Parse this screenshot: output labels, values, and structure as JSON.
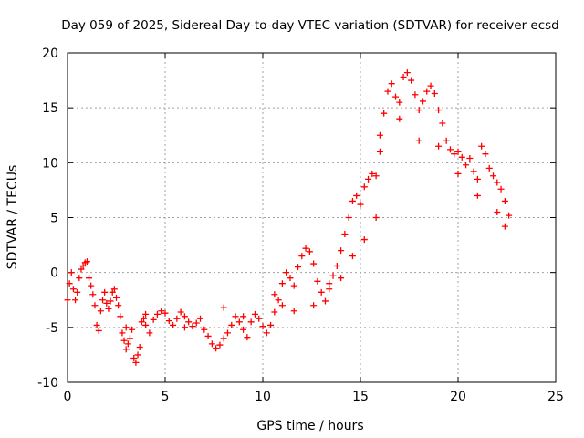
{
  "chart_data": {
    "type": "scatter",
    "title": "Day 059 of 2025, Sidereal Day-to-day VTEC variation (SDTVAR) for receiver ecsd",
    "xlabel": "GPS time / hours",
    "ylabel": "SDTVAR / TECUs",
    "xlim": [
      0,
      25
    ],
    "ylim": [
      -10,
      20
    ],
    "xticks": [
      0,
      5,
      10,
      15,
      20,
      25
    ],
    "yticks": [
      -10,
      -5,
      0,
      5,
      10,
      15,
      20
    ],
    "xtick_labels": [
      "0",
      "5",
      "10",
      "15",
      "20",
      "25"
    ],
    "ytick_labels": [
      "-10",
      "-5",
      "0",
      "5",
      "10",
      "15",
      "20"
    ],
    "grid": true,
    "marker": "+",
    "color": "#ff0000",
    "series": [
      {
        "name": "SDTVAR",
        "points": [
          [
            0.0,
            -2.5
          ],
          [
            0.1,
            -1.0
          ],
          [
            0.2,
            0.0
          ],
          [
            0.3,
            -1.5
          ],
          [
            0.4,
            -2.5
          ],
          [
            0.5,
            -1.8
          ],
          [
            0.6,
            -0.5
          ],
          [
            0.7,
            0.3
          ],
          [
            0.8,
            0.6
          ],
          [
            0.9,
            0.9
          ],
          [
            1.0,
            1.0
          ],
          [
            1.1,
            -0.5
          ],
          [
            1.2,
            -1.2
          ],
          [
            1.3,
            -2.0
          ],
          [
            1.4,
            -3.0
          ],
          [
            1.5,
            -4.8
          ],
          [
            1.6,
            -5.3
          ],
          [
            1.7,
            -3.5
          ],
          [
            1.8,
            -2.5
          ],
          [
            1.9,
            -1.8
          ],
          [
            2.0,
            -2.8
          ],
          [
            2.1,
            -3.3
          ],
          [
            2.2,
            -2.6
          ],
          [
            2.3,
            -1.8
          ],
          [
            2.4,
            -1.5
          ],
          [
            2.5,
            -2.3
          ],
          [
            2.6,
            -3.0
          ],
          [
            2.7,
            -4.0
          ],
          [
            2.8,
            -5.5
          ],
          [
            2.9,
            -6.2
          ],
          [
            3.0,
            -7.0
          ],
          [
            3.1,
            -6.5
          ],
          [
            3.2,
            -6.0
          ],
          [
            3.3,
            -5.2
          ],
          [
            3.4,
            -7.8
          ],
          [
            3.5,
            -8.2
          ],
          [
            3.6,
            -7.5
          ],
          [
            3.7,
            -6.8
          ],
          [
            3.8,
            -4.5
          ],
          [
            3.9,
            -4.2
          ],
          [
            4.0,
            -4.8
          ],
          [
            4.2,
            -5.5
          ],
          [
            4.4,
            -4.3
          ],
          [
            4.6,
            -3.8
          ],
          [
            4.8,
            -3.5
          ],
          [
            5.0,
            -3.7
          ],
          [
            5.2,
            -4.4
          ],
          [
            5.4,
            -4.8
          ],
          [
            5.6,
            -4.2
          ],
          [
            5.8,
            -3.6
          ],
          [
            6.0,
            -4.0
          ],
          [
            6.2,
            -4.5
          ],
          [
            6.4,
            -4.9
          ],
          [
            6.6,
            -4.6
          ],
          [
            6.8,
            -4.2
          ],
          [
            7.0,
            -5.2
          ],
          [
            7.2,
            -5.8
          ],
          [
            7.4,
            -6.5
          ],
          [
            7.6,
            -6.9
          ],
          [
            7.8,
            -6.6
          ],
          [
            8.0,
            -6.0
          ],
          [
            8.2,
            -5.5
          ],
          [
            8.4,
            -4.8
          ],
          [
            8.6,
            -4.0
          ],
          [
            8.8,
            -4.5
          ],
          [
            9.0,
            -5.2
          ],
          [
            9.2,
            -5.9
          ],
          [
            9.4,
            -4.5
          ],
          [
            9.6,
            -3.8
          ],
          [
            9.8,
            -4.2
          ],
          [
            10.0,
            -4.9
          ],
          [
            10.2,
            -5.5
          ],
          [
            10.4,
            -4.8
          ],
          [
            10.6,
            -3.6
          ],
          [
            10.8,
            -2.5
          ],
          [
            11.0,
            -1.0
          ],
          [
            11.2,
            0.0
          ],
          [
            11.4,
            -0.5
          ],
          [
            11.6,
            -1.2
          ],
          [
            11.8,
            0.5
          ],
          [
            12.0,
            1.5
          ],
          [
            12.2,
            2.2
          ],
          [
            12.4,
            1.9
          ],
          [
            12.6,
            0.8
          ],
          [
            12.8,
            -0.8
          ],
          [
            13.0,
            -1.8
          ],
          [
            13.2,
            -2.6
          ],
          [
            13.4,
            -1.5
          ],
          [
            13.6,
            -0.3
          ],
          [
            13.8,
            0.6
          ],
          [
            14.0,
            2.0
          ],
          [
            14.2,
            3.5
          ],
          [
            14.4,
            5.0
          ],
          [
            14.6,
            6.5
          ],
          [
            14.8,
            7.0
          ],
          [
            15.0,
            6.2
          ],
          [
            15.2,
            7.8
          ],
          [
            15.4,
            8.5
          ],
          [
            15.6,
            9.0
          ],
          [
            15.8,
            8.8
          ],
          [
            16.0,
            11.0
          ],
          [
            16.2,
            14.5
          ],
          [
            16.4,
            16.5
          ],
          [
            16.6,
            17.2
          ],
          [
            16.8,
            16.0
          ],
          [
            17.0,
            15.5
          ],
          [
            17.2,
            17.8
          ],
          [
            17.4,
            18.2
          ],
          [
            17.6,
            17.5
          ],
          [
            17.8,
            16.2
          ],
          [
            18.0,
            14.8
          ],
          [
            18.2,
            15.6
          ],
          [
            18.4,
            16.5
          ],
          [
            18.6,
            17.0
          ],
          [
            18.8,
            16.3
          ],
          [
            19.0,
            14.8
          ],
          [
            19.2,
            13.6
          ],
          [
            19.4,
            12.0
          ],
          [
            19.6,
            11.2
          ],
          [
            19.8,
            10.8
          ],
          [
            20.0,
            11.0
          ],
          [
            20.2,
            10.5
          ],
          [
            20.4,
            9.8
          ],
          [
            20.6,
            10.4
          ],
          [
            20.8,
            9.2
          ],
          [
            21.0,
            8.5
          ],
          [
            21.2,
            11.5
          ],
          [
            21.4,
            10.8
          ],
          [
            21.6,
            9.5
          ],
          [
            21.8,
            8.8
          ],
          [
            22.0,
            8.2
          ],
          [
            22.2,
            7.6
          ],
          [
            22.4,
            6.5
          ],
          [
            22.6,
            5.2
          ],
          [
            16.0,
            12.5
          ],
          [
            17.0,
            14.0
          ],
          [
            18.0,
            12.0
          ],
          [
            19.0,
            11.5
          ],
          [
            20.0,
            9.0
          ],
          [
            21.0,
            7.0
          ],
          [
            22.0,
            5.5
          ],
          [
            22.4,
            4.2
          ],
          [
            10.6,
            -2.0
          ],
          [
            11.0,
            -3.0
          ],
          [
            11.6,
            -3.5
          ],
          [
            12.6,
            -3.0
          ],
          [
            13.4,
            -1.0
          ],
          [
            14.0,
            -0.5
          ],
          [
            14.6,
            1.5
          ],
          [
            15.2,
            3.0
          ],
          [
            15.8,
            5.0
          ],
          [
            3.0,
            -5.0
          ],
          [
            4.0,
            -3.8
          ],
          [
            6.0,
            -5.0
          ],
          [
            8.0,
            -3.2
          ],
          [
            9.0,
            -4.0
          ]
        ]
      }
    ]
  }
}
